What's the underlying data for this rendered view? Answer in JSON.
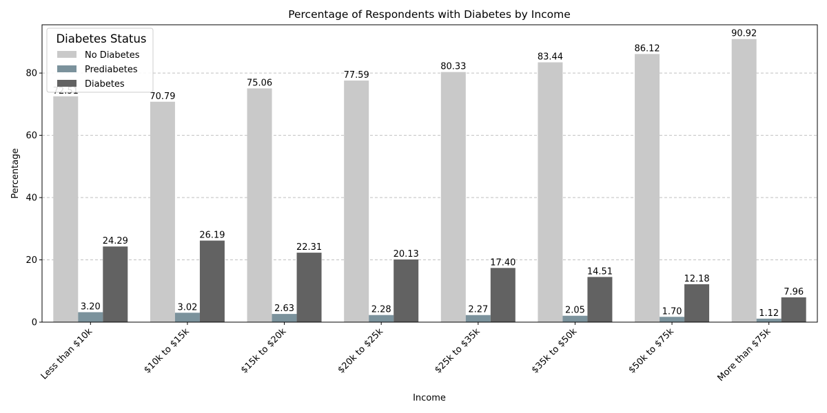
{
  "chart_data": {
    "type": "bar",
    "title": "Percentage of Respondents with Diabetes by Income",
    "xlabel": "Income",
    "ylabel": "Percentage",
    "ylim": [
      0,
      95.5
    ],
    "yticks": [
      0,
      20,
      40,
      60,
      80
    ],
    "grid": "y-dashed",
    "categories": [
      "Less than $10k",
      "$10k to $15k",
      "$15k to $20k",
      "$20k to $25k",
      "$25k to $35k",
      "$35k to $50k",
      "$50k to $75k",
      "More than $75k"
    ],
    "series": [
      {
        "name": "No Diabetes",
        "color": "#c9c9c9",
        "values": [
          72.51,
          70.79,
          75.06,
          77.59,
          80.33,
          83.44,
          86.12,
          90.92
        ]
      },
      {
        "name": "Prediabetes",
        "color": "#7b929c",
        "values": [
          3.2,
          3.02,
          2.63,
          2.28,
          2.27,
          2.05,
          1.7,
          1.12
        ]
      },
      {
        "name": "Diabetes",
        "color": "#626262",
        "values": [
          24.29,
          26.19,
          22.31,
          20.13,
          17.4,
          14.51,
          12.18,
          7.96
        ]
      }
    ],
    "legend": {
      "title": "Diabetes Status",
      "placement": "upper-left"
    }
  }
}
